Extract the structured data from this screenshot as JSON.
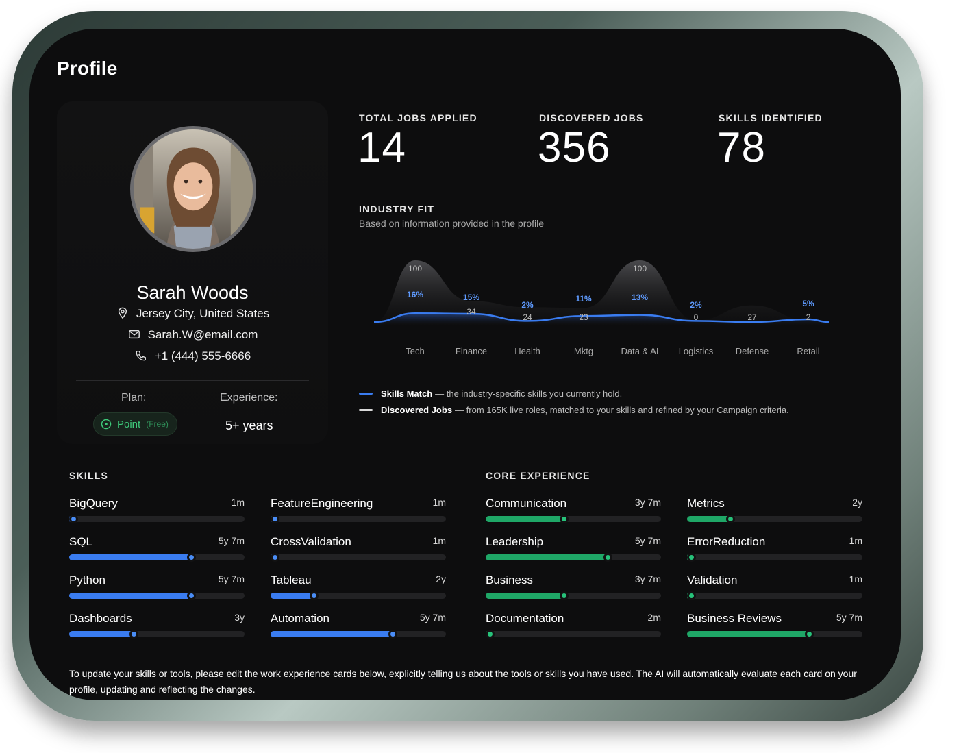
{
  "page": {
    "title": "Profile"
  },
  "profile": {
    "name": "Sarah Woods",
    "location": "Jersey City, United States",
    "email": "Sarah.W@email.com",
    "phone": "+1 (444) 555-6666",
    "plan_label": "Plan:",
    "plan_name": "Point",
    "plan_tier": "(Free)",
    "experience_label": "Experience:",
    "experience_value": "5+ years",
    "accent": "#3ec97a"
  },
  "stats": [
    {
      "label": "TOTAL JOBS APPLIED",
      "value": "14"
    },
    {
      "label": "DISCOVERED JOBS",
      "value": "356"
    },
    {
      "label": "SKILLS IDENTIFIED",
      "value": "78"
    }
  ],
  "industry_fit": {
    "title": "INDUSTRY FIT",
    "subtitle": "Based on information provided in the profile",
    "legend": [
      {
        "name": "Skills Match",
        "desc": "— the industry-specific skills you currently hold.",
        "color": "#3a7cf0"
      },
      {
        "name": "Discovered Jobs",
        "desc": "— from 165K live roles, matched to your skills and refined by your Campaign criteria.",
        "color": "#d9d9d9"
      }
    ]
  },
  "chart_data": {
    "type": "area",
    "categories": [
      "Tech",
      "Finance",
      "Health",
      "Mktg",
      "Data & AI",
      "Logistics",
      "Defense",
      "Retail"
    ],
    "series": [
      {
        "name": "Discovered Jobs",
        "values": [
          100,
          34,
          24,
          23,
          100,
          0,
          27,
          2
        ],
        "labels": [
          "100",
          "34",
          "24",
          "23",
          "100",
          "0",
          "27",
          "2"
        ]
      },
      {
        "name": "Skills Match",
        "values": [
          16,
          15,
          2,
          11,
          13,
          2,
          0,
          5
        ],
        "labels": [
          "16%",
          "15%",
          "2%",
          "11%",
          "13%",
          "2%",
          "",
          "5%"
        ]
      }
    ],
    "colors": {
      "jobs": "#d9d9d9",
      "skills": "#3a7cf0"
    }
  },
  "skills": {
    "title": "SKILLS",
    "items": [
      {
        "name": "BigQuery",
        "duration": "1m",
        "level": 0.02
      },
      {
        "name": "SQL",
        "duration": "5y 7m",
        "level": 0.7
      },
      {
        "name": "Python",
        "duration": "5y 7m",
        "level": 0.7
      },
      {
        "name": "Dashboards",
        "duration": "3y",
        "level": 0.37
      },
      {
        "name": "FeatureEngineering",
        "duration": "1m",
        "level": 0.02
      },
      {
        "name": "CrossValidation",
        "duration": "1m",
        "level": 0.02
      },
      {
        "name": "Tableau",
        "duration": "2y",
        "level": 0.25
      },
      {
        "name": "Automation",
        "duration": "5y 7m",
        "level": 0.7
      }
    ]
  },
  "core_experience": {
    "title": "CORE EXPERIENCE",
    "items": [
      {
        "name": "Communication",
        "duration": "3y 7m",
        "level": 0.45
      },
      {
        "name": "Leadership",
        "duration": "5y 7m",
        "level": 0.7
      },
      {
        "name": "Business",
        "duration": "3y 7m",
        "level": 0.45
      },
      {
        "name": "Documentation",
        "duration": "2m",
        "level": 0.02
      },
      {
        "name": "Metrics",
        "duration": "2y",
        "level": 0.25
      },
      {
        "name": "ErrorReduction",
        "duration": "1m",
        "level": 0.02
      },
      {
        "name": "Validation",
        "duration": "1m",
        "level": 0.02
      },
      {
        "name": "Business Reviews",
        "duration": "5y 7m",
        "level": 0.7
      }
    ]
  },
  "footer_note": "To update your skills or tools, please edit the work experience cards below, explicitly telling us about the tools or skills you have used. The AI will automatically evaluate each card on your profile, updating and reflecting the changes."
}
